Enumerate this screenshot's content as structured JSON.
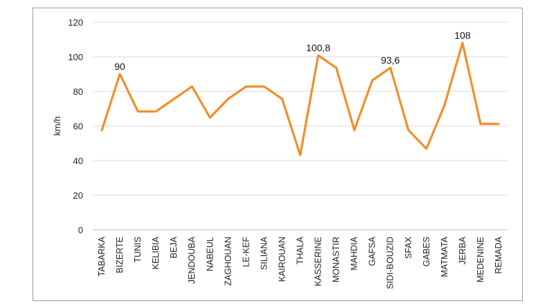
{
  "chart_data": {
    "type": "line",
    "categories": [
      "TABARKA",
      "BIZERTE",
      "TUNIS",
      "KELIBIA",
      "BEJA",
      "JENDOUBA",
      "NABEUL",
      "ZAGHOUAN",
      "LE-KEF",
      "SILIANA",
      "KAIROUAN",
      "THALA",
      "KASSERINE",
      "MONASTIR",
      "MAHDIA",
      "GAFSA",
      "SIDI-BOUZID",
      "SFAX",
      "GABES",
      "MATMATA",
      "JERBA",
      "MEDENINE",
      "REMADA"
    ],
    "series": [
      {
        "values": [
          57.6,
          90,
          68.4,
          68.4,
          75.6,
          82.8,
          64.8,
          75.6,
          82.8,
          82.8,
          75.6,
          43.2,
          100.8,
          93.6,
          57.6,
          86.4,
          93.6,
          57.6,
          46.8,
          72,
          108,
          61.2,
          61.2
        ],
        "color": "#f28e2b"
      }
    ],
    "data_labels": [
      {
        "index": 1,
        "text": "90"
      },
      {
        "index": 12,
        "text": "100,8"
      },
      {
        "index": 16,
        "text": "93,6"
      },
      {
        "index": 20,
        "text": "108"
      }
    ],
    "ylabel": "km/h",
    "xlabel": "",
    "ylim": [
      0,
      120
    ],
    "yticks": [
      0,
      20,
      40,
      60,
      80,
      100,
      120
    ],
    "grid": "horizontal",
    "legend": "none",
    "title": ""
  }
}
